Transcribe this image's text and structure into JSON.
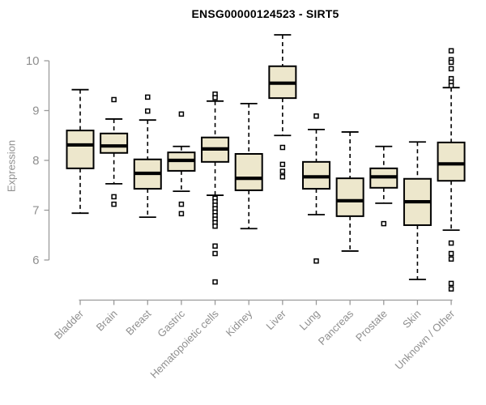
{
  "title": "ENSG00000124523 - SIRT5",
  "colors": {
    "background": "#ffffff",
    "title": "#000000",
    "axis": "#9b9b9b",
    "tick_label": "#8f8f8f",
    "box_fill": "#ede7cc",
    "box_border": "#000000",
    "median": "#000000",
    "whisker": "#000000",
    "outlier_fill": "#ffffff",
    "outlier_border": "#000000"
  },
  "chart_data": {
    "type": "boxplot",
    "title": "ENSG00000124523 - SIRT5",
    "xlabel": "",
    "ylabel": "Expression",
    "yticks": [
      6,
      7,
      8,
      9,
      10
    ],
    "ylim": [
      5.3,
      10.6
    ],
    "grid": false,
    "legend": "none",
    "categories": [
      "Bladder",
      "Brain",
      "Breast",
      "Gastric",
      "Hematopoietic cells",
      "Kidney",
      "Liver",
      "Lung",
      "Pancreas",
      "Prostate",
      "Skin",
      "Unknown / Other"
    ],
    "boxes": [
      {
        "category": "Bladder",
        "whisker_low": 6.94,
        "q1": 7.84,
        "median": 8.31,
        "q3": 8.6,
        "whisker_high": 9.42,
        "outliers": []
      },
      {
        "category": "Brain",
        "whisker_low": 7.53,
        "q1": 8.15,
        "median": 8.29,
        "q3": 8.54,
        "whisker_high": 8.83,
        "outliers": [
          9.22,
          7.27,
          7.12
        ]
      },
      {
        "category": "Breast",
        "whisker_low": 6.86,
        "q1": 7.43,
        "median": 7.74,
        "q3": 8.02,
        "whisker_high": 8.81,
        "outliers": [
          9.27,
          8.99
        ]
      },
      {
        "category": "Gastric",
        "whisker_low": 7.38,
        "q1": 7.79,
        "median": 8.0,
        "q3": 8.16,
        "whisker_high": 8.28,
        "outliers": [
          8.93,
          7.12,
          6.93
        ]
      },
      {
        "category": "Hematopoietic cells",
        "whisker_low": 7.3,
        "q1": 7.97,
        "median": 8.23,
        "q3": 8.46,
        "whisker_high": 9.19,
        "outliers": [
          9.33,
          9.26,
          7.24,
          7.17,
          7.1,
          7.03,
          6.96,
          6.89,
          6.82,
          6.75,
          6.68,
          6.28,
          6.13,
          5.56
        ]
      },
      {
        "category": "Kidney",
        "whisker_low": 6.63,
        "q1": 7.4,
        "median": 7.64,
        "q3": 8.13,
        "whisker_high": 9.14,
        "outliers": []
      },
      {
        "category": "Liver",
        "whisker_low": 8.5,
        "q1": 9.25,
        "median": 9.55,
        "q3": 9.89,
        "whisker_high": 10.52,
        "outliers": [
          8.26,
          7.92,
          7.78,
          7.67
        ]
      },
      {
        "category": "Lung",
        "whisker_low": 6.91,
        "q1": 7.43,
        "median": 7.67,
        "q3": 7.97,
        "whisker_high": 8.62,
        "outliers": [
          8.89,
          5.98
        ]
      },
      {
        "category": "Pancreas",
        "whisker_low": 6.18,
        "q1": 6.88,
        "median": 7.19,
        "q3": 7.64,
        "whisker_high": 8.57,
        "outliers": []
      },
      {
        "category": "Prostate",
        "whisker_low": 7.14,
        "q1": 7.45,
        "median": 7.67,
        "q3": 7.84,
        "whisker_high": 8.28,
        "outliers": [
          6.73
        ]
      },
      {
        "category": "Skin",
        "whisker_low": 5.61,
        "q1": 6.7,
        "median": 7.17,
        "q3": 7.63,
        "whisker_high": 8.37,
        "outliers": []
      },
      {
        "category": "Unknown / Other",
        "whisker_low": 6.6,
        "q1": 7.59,
        "median": 7.93,
        "q3": 8.36,
        "whisker_high": 9.46,
        "outliers": [
          10.2,
          10.02,
          9.97,
          9.84,
          9.64,
          9.57,
          9.5,
          6.34,
          6.13,
          6.02,
          5.53,
          5.42
        ]
      }
    ]
  }
}
